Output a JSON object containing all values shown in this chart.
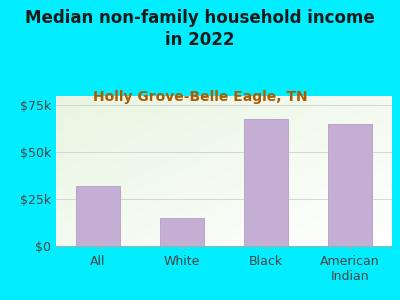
{
  "title": "Median non-family household income\nin 2022",
  "subtitle": "Holly Grove-Belle Eagle, TN",
  "categories": [
    "All",
    "White",
    "Black",
    "American\nIndian"
  ],
  "values": [
    32000,
    15000,
    68000,
    65000
  ],
  "bar_color": "#c4aed4",
  "bar_edge_color": "#b090c0",
  "background_outer": "#00eeff",
  "plot_bg_color_topleft": "#e8f5e0",
  "plot_bg_color_bottomright": "#f8fdf8",
  "title_color": "#1a1a1a",
  "subtitle_color": "#b05a00",
  "tick_label_color": "#444444",
  "ylim": [
    0,
    80000
  ],
  "yticks": [
    0,
    25000,
    50000,
    75000
  ],
  "ytick_labels": [
    "$0",
    "$25k",
    "$50k",
    "$75k"
  ],
  "title_fontsize": 12,
  "subtitle_fontsize": 10,
  "axis_label_fontsize": 9,
  "grid_color": "#d0d0d0"
}
